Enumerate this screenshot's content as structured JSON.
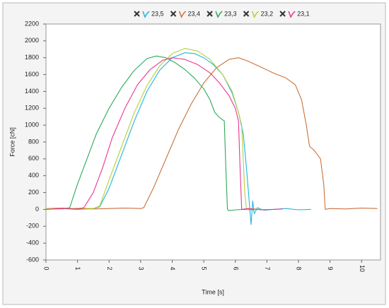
{
  "chart_data": {
    "type": "line",
    "x_label": "Time [s]",
    "y_label": "Force [cN]",
    "xlim": [
      0,
      10.6
    ],
    "xticks": [
      0,
      1,
      2,
      3,
      4,
      5,
      6,
      7,
      8,
      9,
      10
    ],
    "ylim": [
      -600,
      2200
    ],
    "yticks": [
      -600,
      -400,
      -200,
      0,
      200,
      400,
      600,
      800,
      1000,
      1200,
      1400,
      1600,
      1800,
      2000,
      2200
    ],
    "grid": false,
    "legend": "top",
    "series": [
      {
        "name": "23,5",
        "color": "#1fb5e0",
        "x": [
          0,
          0.5,
          1,
          1.5,
          1.7,
          2.0,
          2.4,
          2.8,
          3.2,
          3.6,
          4.0,
          4.4,
          4.7,
          5.0,
          5.3,
          5.6,
          5.9,
          6.1,
          6.25,
          6.35,
          6.45,
          6.5,
          6.55,
          6.6,
          6.7,
          6.9,
          7.2,
          7.6,
          8.0,
          8.4
        ],
        "values": [
          5,
          10,
          0,
          10,
          30,
          250,
          650,
          1050,
          1400,
          1650,
          1800,
          1860,
          1850,
          1800,
          1720,
          1600,
          1380,
          1150,
          900,
          500,
          50,
          -180,
          100,
          -50,
          20,
          -10,
          0,
          10,
          -5,
          0
        ]
      },
      {
        "name": "23,4",
        "color": "#c8733a",
        "x": [
          0,
          0.5,
          1,
          1.5,
          2,
          2.5,
          3,
          3.1,
          3.4,
          3.8,
          4.2,
          4.6,
          5.0,
          5.4,
          5.8,
          6.1,
          6.4,
          6.8,
          7.2,
          7.6,
          7.9,
          8.1,
          8.25,
          8.35,
          8.5,
          8.7,
          8.8,
          8.85,
          9.0,
          9.5,
          10,
          10.5
        ],
        "values": [
          10,
          15,
          10,
          5,
          10,
          15,
          10,
          20,
          250,
          600,
          950,
          1250,
          1500,
          1680,
          1780,
          1800,
          1760,
          1690,
          1620,
          1560,
          1480,
          1300,
          1000,
          750,
          700,
          600,
          300,
          0,
          10,
          5,
          15,
          10
        ]
      },
      {
        "name": "23,3",
        "color": "#2ea85a",
        "x": [
          0,
          0.3,
          0.6,
          0.75,
          1.0,
          1.3,
          1.6,
          2.0,
          2.4,
          2.8,
          3.2,
          3.5,
          3.8,
          4.1,
          4.4,
          4.7,
          5.0,
          5.2,
          5.35,
          5.5,
          5.65,
          5.7,
          5.75,
          5.8,
          6.0,
          6.3,
          6.6
        ],
        "values": [
          10,
          5,
          10,
          20,
          300,
          600,
          900,
          1200,
          1450,
          1650,
          1790,
          1820,
          1800,
          1740,
          1660,
          1560,
          1430,
          1300,
          1150,
          1090,
          1050,
          500,
          0,
          -15,
          -5,
          0,
          -5
        ]
      },
      {
        "name": "23,2",
        "color": "#b7cf3c",
        "x": [
          0,
          0.5,
          1,
          1.5,
          1.7,
          2.0,
          2.4,
          2.8,
          3.2,
          3.6,
          4.0,
          4.4,
          4.8,
          5.2,
          5.6,
          5.9,
          6.1,
          6.2,
          6.3,
          6.35,
          6.5,
          6.8
        ],
        "values": [
          10,
          5,
          15,
          10,
          40,
          350,
          750,
          1150,
          1470,
          1700,
          1850,
          1910,
          1880,
          1780,
          1600,
          1400,
          1150,
          1000,
          200,
          0,
          10,
          0
        ]
      },
      {
        "name": "23,1",
        "color": "#e8378f",
        "x": [
          0,
          0.5,
          1,
          1.2,
          1.5,
          1.8,
          2.1,
          2.5,
          2.9,
          3.3,
          3.7,
          4.0,
          4.4,
          4.8,
          5.2,
          5.5,
          5.8,
          6.0,
          6.1,
          6.15,
          6.2,
          6.4,
          6.8,
          7.2,
          7.5
        ],
        "values": [
          0,
          10,
          5,
          20,
          200,
          500,
          850,
          1200,
          1480,
          1660,
          1770,
          1800,
          1780,
          1720,
          1620,
          1500,
          1350,
          1200,
          1050,
          500,
          0,
          10,
          -5,
          0,
          5
        ]
      }
    ]
  }
}
